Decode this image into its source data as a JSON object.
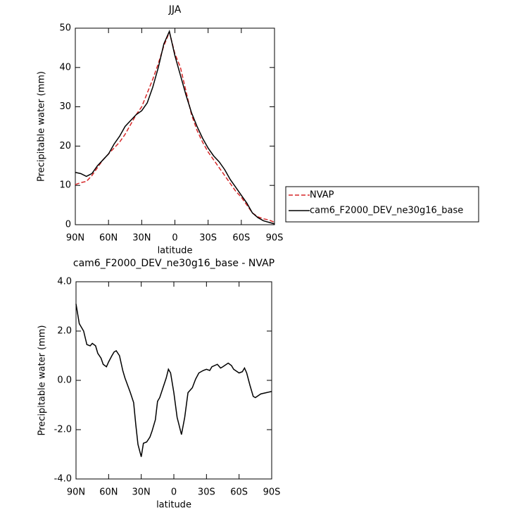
{
  "chart_data": [
    {
      "type": "line",
      "title": "JJA",
      "xlabel": "latitude",
      "ylabel": "Precipitable water (mm)",
      "x": [
        90,
        85,
        80,
        75,
        70,
        65,
        60,
        55,
        50,
        45,
        40,
        35,
        30,
        25,
        20,
        15,
        10,
        5,
        0,
        -5,
        -10,
        -15,
        -20,
        -25,
        -30,
        -35,
        -40,
        -45,
        -50,
        -55,
        -60,
        -65,
        -70,
        -75,
        -80,
        -85,
        -90
      ],
      "xlim": [
        90,
        -90
      ],
      "xticks": [
        {
          "value": 90,
          "label": "90N"
        },
        {
          "value": 60,
          "label": "60N"
        },
        {
          "value": 30,
          "label": "30N"
        },
        0,
        {
          "value": -30,
          "label": "30S"
        },
        {
          "value": -60,
          "label": "60S"
        },
        {
          "value": -90,
          "label": "90S"
        }
      ],
      "ylim": [
        0,
        50
      ],
      "yticks": [
        0,
        10,
        20,
        30,
        40,
        50
      ],
      "legend": "outside-right",
      "series": [
        {
          "name": "NVAP",
          "color": "#d62728",
          "dash": true,
          "values": [
            10.2,
            10.7,
            11,
            12.5,
            14.5,
            16.5,
            18,
            19.5,
            21,
            23,
            25.5,
            28,
            30,
            33.5,
            37,
            41,
            45.5,
            49,
            43.5,
            40,
            34,
            28,
            24,
            21,
            18.5,
            16.5,
            14.5,
            12.5,
            10.5,
            8.5,
            7,
            5,
            3,
            2,
            1.5,
            1.2,
            0.6
          ]
        },
        {
          "name": "cam6_F2000_DEV_ne30g16_base",
          "color": "#000000",
          "dash": false,
          "values": [
            13.3,
            13,
            12.3,
            13,
            15,
            16.5,
            18,
            20.5,
            22.5,
            25,
            26.5,
            28,
            29,
            31,
            35,
            40,
            46,
            49.2,
            43,
            38,
            33,
            28.5,
            25,
            22,
            19.5,
            17.5,
            16,
            14,
            11.5,
            9.5,
            7.5,
            5.5,
            3,
            1.8,
            1,
            0.6,
            0.2
          ]
        }
      ]
    },
    {
      "type": "line",
      "title": "cam6_F2000_DEV_ne30g16_base - NVAP",
      "xlabel": "latitude",
      "ylabel": "Precipitable water (mm)",
      "x": [
        90,
        87,
        83,
        80,
        77,
        75,
        72,
        70,
        67,
        65,
        62,
        60,
        57,
        55,
        53,
        50,
        47,
        45,
        40,
        37,
        35,
        33,
        30,
        28,
        25,
        22,
        20,
        17,
        15,
        13,
        10,
        7,
        5,
        3,
        0,
        -3,
        -7,
        -10,
        -13,
        -17,
        -20,
        -23,
        -27,
        -30,
        -33,
        -35,
        -40,
        -43,
        -45,
        -50,
        -53,
        -55,
        -60,
        -63,
        -65,
        -67,
        -70,
        -73,
        -75,
        -80,
        -85,
        -90
      ],
      "xlim": [
        90,
        -90
      ],
      "xticks": [
        {
          "value": 90,
          "label": "90N"
        },
        {
          "value": 60,
          "label": "60N"
        },
        {
          "value": 30,
          "label": "30N"
        },
        0,
        {
          "value": -30,
          "label": "30S"
        },
        {
          "value": -60,
          "label": "60S"
        },
        {
          "value": -90,
          "label": "90S"
        }
      ],
      "ylim": [
        -4,
        4
      ],
      "yticks": [
        {
          "value": -4,
          "label": "-4.0"
        },
        {
          "value": -2,
          "label": "-2.0"
        },
        {
          "value": 0,
          "label": "0.0"
        },
        {
          "value": 2,
          "label": "2.0"
        },
        {
          "value": 4,
          "label": "4.0"
        }
      ],
      "series": [
        {
          "color": "#000000",
          "dash": false,
          "values": [
            3.1,
            2.3,
            2.0,
            1.45,
            1.4,
            1.5,
            1.4,
            1.1,
            0.9,
            0.65,
            0.55,
            0.75,
            1.0,
            1.15,
            1.2,
            1.0,
            0.4,
            0.1,
            -0.5,
            -0.9,
            -1.8,
            -2.6,
            -3.1,
            -2.55,
            -2.5,
            -2.3,
            -2.05,
            -1.6,
            -0.85,
            -0.7,
            -0.3,
            0.1,
            0.45,
            0.3,
            -0.5,
            -1.5,
            -2.2,
            -1.5,
            -0.5,
            -0.3,
            0.05,
            0.3,
            0.4,
            0.45,
            0.4,
            0.55,
            0.65,
            0.5,
            0.55,
            0.7,
            0.6,
            0.45,
            0.3,
            0.35,
            0.5,
            0.3,
            -0.2,
            -0.65,
            -0.7,
            -0.55,
            -0.5,
            -0.45
          ]
        }
      ]
    }
  ]
}
